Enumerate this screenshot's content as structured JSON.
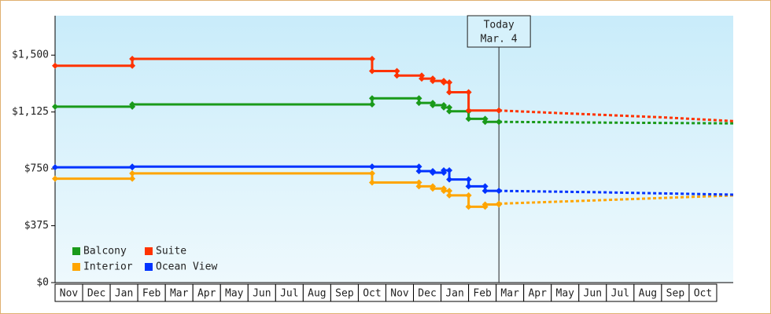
{
  "chart_data": {
    "type": "step-line",
    "categories": [
      "Nov",
      "Dec",
      "Jan",
      "Feb",
      "Mar",
      "Apr",
      "May",
      "Jun",
      "Jul",
      "Aug",
      "Sep",
      "Oct",
      "Nov",
      "Dec",
      "Jan",
      "Feb",
      "Mar",
      "Apr",
      "May",
      "Jun",
      "Jul",
      "Aug",
      "Sep",
      "Oct"
    ],
    "xlim": [
      0,
      24.6
    ],
    "ylim": [
      0,
      1760
    ],
    "yticks": [
      {
        "value": 0,
        "label": "$0"
      },
      {
        "value": 375,
        "label": "$375"
      },
      {
        "value": 750,
        "label": "$750"
      },
      {
        "value": 1125,
        "label": "$1,125"
      },
      {
        "value": 1500,
        "label": "$1,500"
      }
    ],
    "annotation": {
      "x": 16.1,
      "lines": [
        "Today",
        "Mar. 4"
      ]
    },
    "legend": "bottom-left",
    "series": [
      {
        "name": "Balcony",
        "color": "#1a9a1a",
        "x": [
          0,
          2.8,
          11.5,
          13.2,
          13.7,
          14.1,
          14.3,
          15.0,
          15.6,
          16.1
        ],
        "values": [
          1160,
          1175,
          1215,
          1185,
          1170,
          1155,
          1130,
          1080,
          1060,
          1060
        ],
        "forecast": {
          "x": [
            16.1,
            20,
            24.6
          ],
          "values": [
            1060,
            1055,
            1050
          ]
        }
      },
      {
        "name": "Suite",
        "color": "#ff3300",
        "x": [
          0,
          2.8,
          11.5,
          12.4,
          13.3,
          13.7,
          14.1,
          14.3,
          15.0,
          16.1
        ],
        "values": [
          1430,
          1475,
          1395,
          1365,
          1345,
          1330,
          1320,
          1255,
          1135,
          1135
        ],
        "forecast": {
          "x": [
            16.1,
            18,
            20,
            22,
            24.6
          ],
          "values": [
            1135,
            1120,
            1105,
            1090,
            1065
          ]
        }
      },
      {
        "name": "Interior",
        "color": "#ffa500",
        "x": [
          0,
          2.8,
          11.5,
          13.2,
          13.7,
          14.1,
          14.3,
          15.0,
          15.6,
          16.1
        ],
        "values": [
          685,
          720,
          660,
          635,
          620,
          605,
          575,
          500,
          515,
          520
        ],
        "forecast": {
          "x": [
            16.1,
            20,
            24.6
          ],
          "values": [
            520,
            545,
            575
          ]
        }
      },
      {
        "name": "Ocean View",
        "color": "#0033ff",
        "x": [
          0,
          2.8,
          11.5,
          13.2,
          13.7,
          14.1,
          14.3,
          15.0,
          15.6,
          16.1
        ],
        "values": [
          760,
          765,
          765,
          735,
          725,
          740,
          680,
          635,
          605,
          605
        ],
        "forecast": {
          "x": [
            16.1,
            20,
            24.6
          ],
          "values": [
            605,
            595,
            580
          ]
        }
      }
    ]
  }
}
